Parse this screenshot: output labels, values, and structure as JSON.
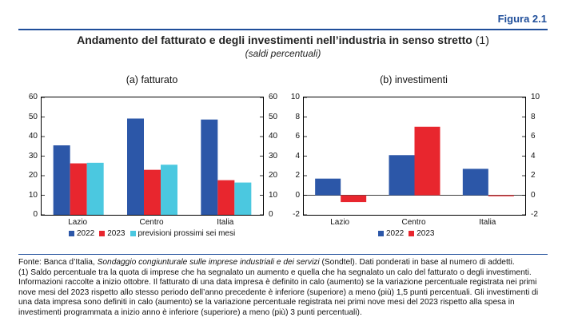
{
  "figure_label": "Figura 2.1",
  "title": "Andamento del fatturato e degli investimenti nell’industria in senso stretto",
  "title_note": "(1)",
  "subtitle": "(saldi percentuali)",
  "colors": {
    "s2022": "#2c57a8",
    "s2023": "#e8262e",
    "prev": "#4bc8e0",
    "accent": "#1f4e9a"
  },
  "chart_data": [
    {
      "type": "bar",
      "panel_title": "(a) fatturato",
      "categories": [
        "Lazio",
        "Centro",
        "Italia"
      ],
      "ylim": [
        0,
        60
      ],
      "yticks": [
        "0",
        "10",
        "20",
        "30",
        "40",
        "50",
        "60"
      ],
      "series": [
        {
          "name": "2022",
          "values": [
            35.5,
            49.2,
            48.7
          ]
        },
        {
          "name": "2023",
          "values": [
            26.3,
            23.0,
            17.7
          ]
        },
        {
          "name": "previsioni prossimi sei mesi",
          "values": [
            26.6,
            25.6,
            16.5
          ]
        }
      ]
    },
    {
      "type": "bar",
      "panel_title": "(b) investimenti",
      "categories": [
        "Lazio",
        "Centro",
        "Italia"
      ],
      "ylim": [
        -2,
        10
      ],
      "yticks": [
        "-2",
        "0",
        "2",
        "4",
        "6",
        "8",
        "10"
      ],
      "series": [
        {
          "name": "2022",
          "values": [
            1.7,
            4.1,
            2.7
          ]
        },
        {
          "name": "2023",
          "values": [
            -0.7,
            7.0,
            -0.1
          ]
        }
      ]
    }
  ],
  "footer": {
    "source_prefix": "Fonte: Banca d’Italia,",
    "source_title": "Sondaggio congiunturale sulle imprese industriali e dei servizi",
    "source_suffix": "(Sondtel). Dati ponderati in base al numero di addetti.",
    "note": "(1) Saldo percentuale tra la quota di imprese che ha segnalato un aumento e quella che ha segnalato un calo del fatturato o degli investimenti. Informazioni raccolte a inizio ottobre. Il fatturato di una data impresa è definito in calo (aumento) se la variazione percentuale registrata nei primi nove mesi del 2023 rispetto allo stesso periodo dell’anno precedente è inferiore (superiore) a meno (più) 1,5 punti percentuali. Gli investimenti di una data impresa sono definiti in calo (aumento) se la variazione percentuale registrata nei primi nove mesi del 2023 rispetto alla spesa in investimenti programmata a inizio anno è inferiore (superiore) a meno (più) 3 punti percentuali)."
  }
}
